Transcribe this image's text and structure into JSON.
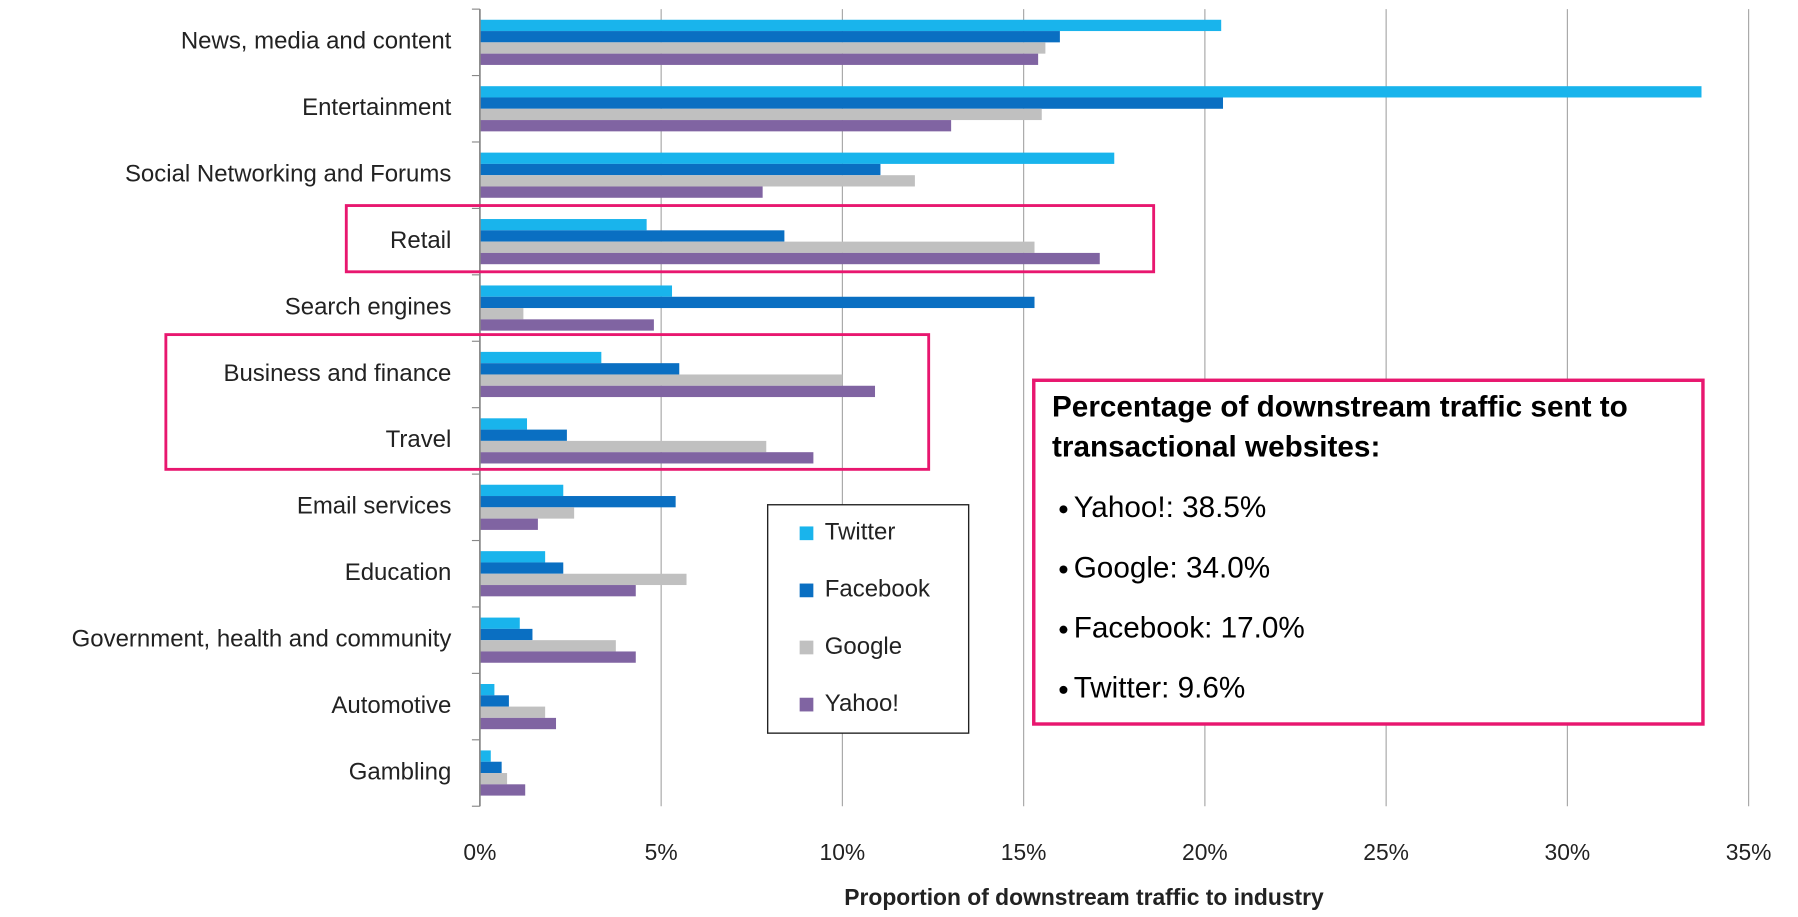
{
  "chart_data": {
    "type": "hbar",
    "x_label": "Proportion of downstream traffic to industry",
    "categories": [
      "News, media and content",
      "Entertainment",
      "Social Networking and Forums",
      "Retail",
      "Search engines",
      "Business and finance",
      "Travel",
      "Email services",
      "Education",
      "Government, health and community",
      "Automotive",
      "Gambling"
    ],
    "series": [
      {
        "name": "Twitter",
        "color": "#19b4ec",
        "values": [
          20.45,
          33.7,
          17.5,
          4.6,
          5.3,
          3.35,
          1.3,
          2.3,
          1.8,
          1.1,
          0.4,
          0.3
        ]
      },
      {
        "name": "Facebook",
        "color": "#0a6fc2",
        "values": [
          16.0,
          20.5,
          11.05,
          8.4,
          15.3,
          5.5,
          2.4,
          5.4,
          2.3,
          1.45,
          0.8,
          0.6
        ]
      },
      {
        "name": "Google",
        "color": "#c0c0c0",
        "values": [
          15.6,
          15.5,
          12.0,
          15.3,
          1.2,
          10.0,
          7.9,
          2.6,
          5.7,
          3.75,
          1.8,
          0.75
        ]
      },
      {
        "name": "Yahoo!",
        "color": "#8064a2",
        "values": [
          15.4,
          13.0,
          7.8,
          17.1,
          4.8,
          10.9,
          9.2,
          1.6,
          4.3,
          4.3,
          2.1,
          1.25
        ]
      }
    ],
    "xlim": [
      0,
      35
    ],
    "xticks": [
      {
        "value": 0,
        "label": "0%"
      },
      {
        "value": 5,
        "label": "5%"
      },
      {
        "value": 10,
        "label": "10%"
      },
      {
        "value": 15,
        "label": "15%"
      },
      {
        "value": 20,
        "label": "20%"
      },
      {
        "value": 25,
        "label": "25%"
      },
      {
        "value": 30,
        "label": "30%"
      },
      {
        "value": 35,
        "label": "35%"
      }
    ],
    "grid": true,
    "annotation": {
      "title_line1": "Percentage of downstream traffic sent to",
      "title_line2": "transactional websites:",
      "items": [
        "Yahoo!: 38.5%",
        "Google: 34.0%",
        "Facebook: 17.0%",
        "Twitter: 9.6%"
      ]
    }
  }
}
